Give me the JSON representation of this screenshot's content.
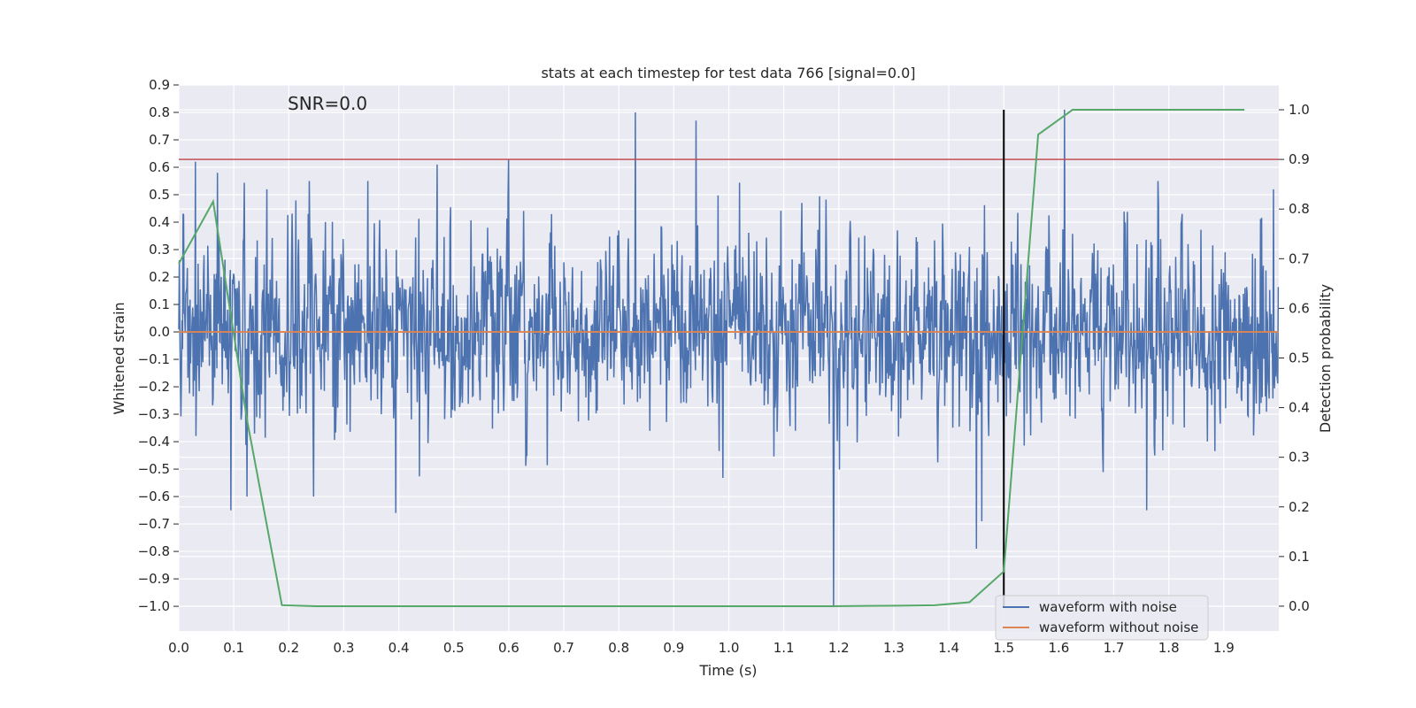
{
  "chart_data": {
    "type": "line",
    "title": "stats at each timestep for test data 766 [signal=0.0]",
    "xlabel": "Time (s)",
    "ylabel": "Whitened strain",
    "y2label": "Detection probability",
    "annotation": "SNR=0.0",
    "xlim": [
      0.0,
      2.0
    ],
    "ylim": [
      -1.09,
      0.9
    ],
    "y2lim": [
      -0.05,
      1.05
    ],
    "xticks": [
      "0.0",
      "0.1",
      "0.2",
      "0.3",
      "0.4",
      "0.5",
      "0.6",
      "0.7",
      "0.8",
      "0.9",
      "1.0",
      "1.1",
      "1.2",
      "1.3",
      "1.4",
      "1.5",
      "1.6",
      "1.7",
      "1.8",
      "1.9"
    ],
    "yticks": [
      "0.9",
      "0.8",
      "0.7",
      "0.6",
      "0.5",
      "0.4",
      "0.3",
      "0.2",
      "0.1",
      "0.0",
      "−0.1",
      "−0.2",
      "−0.3",
      "−0.4",
      "−0.5",
      "−0.6",
      "−0.7",
      "−0.8",
      "−0.9",
      "−1.0"
    ],
    "y2ticks": [
      "1.0",
      "0.9",
      "0.8",
      "0.7",
      "0.6",
      "0.5",
      "0.4",
      "0.3",
      "0.2",
      "0.1",
      "0.0"
    ],
    "grid": true,
    "legend_position": "lower-right",
    "series": [
      {
        "name": "waveform with noise",
        "color": "#4c72b0",
        "axis": "left",
        "values": "noise",
        "n_samples": 2048,
        "noise_seed": 766,
        "highlighted_peaks": [
          {
            "x": 0.03,
            "y": 0.62
          },
          {
            "x": 0.07,
            "y": 0.58
          },
          {
            "x": 0.095,
            "y": -0.65
          },
          {
            "x": 0.16,
            "y": 0.52
          },
          {
            "x": 0.395,
            "y": -0.66
          },
          {
            "x": 0.47,
            "y": 0.61
          },
          {
            "x": 0.6,
            "y": 0.63
          },
          {
            "x": 0.83,
            "y": 0.8
          },
          {
            "x": 0.94,
            "y": 0.77
          },
          {
            "x": 1.19,
            "y": -1.0
          },
          {
            "x": 1.45,
            "y": -0.79
          },
          {
            "x": 1.46,
            "y": -0.69
          },
          {
            "x": 1.61,
            "y": 0.81
          },
          {
            "x": 1.76,
            "y": -0.65
          },
          {
            "x": 1.99,
            "y": 0.52
          }
        ]
      },
      {
        "name": "waveform without noise",
        "color": "#dd8452",
        "axis": "left",
        "x": [
          0.0,
          2.0
        ],
        "y": [
          0.0,
          0.0
        ]
      },
      {
        "name": "detection probability",
        "color": "#55a868",
        "axis": "right",
        "x": [
          0.0,
          0.0625,
          0.125,
          0.1875,
          0.25,
          0.3125,
          0.375,
          0.4375,
          0.5,
          0.5625,
          0.625,
          0.6875,
          0.75,
          0.8125,
          0.875,
          0.9375,
          1.0,
          1.0625,
          1.125,
          1.1875,
          1.25,
          1.3125,
          1.375,
          1.4375,
          1.5,
          1.5625,
          1.625,
          1.6875,
          1.75,
          1.8125,
          1.875,
          1.9375
        ],
        "y": [
          0.69,
          0.815,
          0.37,
          0.002,
          0.0,
          0.0,
          0.0,
          0.0,
          0.0,
          0.0,
          0.0,
          0.0,
          0.0,
          0.0,
          0.0,
          0.0,
          0.0,
          0.0,
          0.0,
          0.0,
          0.0005,
          0.001,
          0.002,
          0.008,
          0.07,
          0.95,
          1.0,
          1.0,
          1.0,
          1.0,
          1.0,
          1.0
        ]
      }
    ],
    "reference_lines": [
      {
        "type": "horizontal",
        "axis": "right",
        "value": 0.9,
        "color": "#c44e52"
      },
      {
        "type": "vertical",
        "value": 1.5,
        "color": "#000000",
        "y2range": [
          0.0,
          1.0
        ]
      }
    ]
  },
  "legend": {
    "items": [
      {
        "label": "waveform with noise",
        "color": "#4c72b0"
      },
      {
        "label": "waveform without noise",
        "color": "#dd8452"
      }
    ]
  }
}
